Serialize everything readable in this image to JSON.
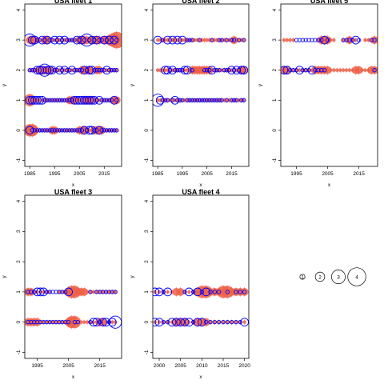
{
  "chart_data": [
    {
      "type": "scatter",
      "title": "USA fleet 1",
      "xlabel": "x",
      "ylabel": "y",
      "xlim": [
        1983,
        2022
      ],
      "ylim": [
        -1.2,
        4.2
      ],
      "xticks": [
        1985,
        1995,
        2005,
        2015
      ],
      "yticks": [
        -1,
        0,
        1,
        2,
        3,
        4
      ],
      "x_start": 1985,
      "x_end": 2020,
      "rows": [
        {
          "y": 3,
          "red_sizes": [
            2,
            2,
            2,
            1,
            1,
            1,
            2,
            2,
            1,
            1,
            1,
            1,
            1,
            1,
            1,
            1,
            1,
            1,
            1,
            1,
            2,
            2,
            2,
            2,
            1,
            2,
            2,
            2,
            2,
            1,
            2,
            2,
            2,
            3,
            3,
            4
          ],
          "blue_sizes": [
            3,
            2,
            2,
            1,
            1,
            2,
            1,
            2,
            1,
            1,
            2,
            1,
            2,
            1,
            2,
            1,
            1,
            1,
            1,
            2,
            1,
            2,
            1,
            3,
            1,
            2,
            1,
            2,
            1,
            1,
            2,
            1,
            2,
            1,
            2,
            1
          ]
        },
        {
          "y": 2,
          "red_sizes": [
            1,
            1,
            1,
            1,
            2,
            2,
            2,
            2,
            2,
            1,
            1,
            1,
            1,
            1,
            1,
            1,
            1,
            1,
            1,
            1,
            1,
            2,
            2,
            2,
            2,
            1,
            1,
            2,
            2,
            1,
            1,
            1,
            1,
            1,
            1,
            1
          ],
          "blue_sizes": [
            1,
            1,
            1,
            2,
            2,
            2,
            3,
            2,
            2,
            2,
            1,
            1,
            2,
            1,
            2,
            1,
            1,
            2,
            1,
            1,
            1,
            1,
            2,
            1,
            2,
            2,
            1,
            1,
            1,
            1,
            1,
            2,
            1,
            1,
            1,
            1
          ]
        },
        {
          "y": 1,
          "red_sizes": [
            3,
            2,
            1,
            1,
            1,
            1,
            1,
            1,
            1,
            1,
            1,
            1,
            1,
            1,
            1,
            1,
            2,
            2,
            2,
            1,
            1,
            1,
            2,
            2,
            2,
            2,
            1,
            1,
            1,
            1,
            1,
            1,
            1,
            1,
            2,
            2
          ],
          "blue_sizes": [
            2,
            2,
            2,
            2,
            2,
            2,
            1,
            1,
            1,
            1,
            1,
            1,
            1,
            1,
            1,
            1,
            1,
            1,
            2,
            2,
            2,
            2,
            2,
            2,
            2,
            2,
            2,
            1,
            2,
            1,
            1,
            1,
            1,
            1,
            2,
            1
          ]
        },
        {
          "y": 0,
          "red_sizes": [
            3,
            3,
            2,
            1,
            1,
            1,
            1,
            1,
            1,
            2,
            2,
            1,
            1,
            1,
            1,
            1,
            1,
            1,
            1,
            1,
            2,
            2,
            2,
            1,
            1,
            1,
            2,
            2,
            2,
            2,
            1,
            1,
            1,
            1,
            1,
            1
          ],
          "blue_sizes": [
            2,
            1,
            1,
            1,
            1,
            1,
            1,
            1,
            1,
            1,
            1,
            1,
            1,
            1,
            1,
            1,
            1,
            1,
            1,
            1,
            1,
            1,
            2,
            1,
            2,
            2,
            1,
            1,
            2,
            1,
            1,
            1,
            1,
            1,
            1,
            1
          ]
        }
      ]
    },
    {
      "type": "scatter",
      "title": "USA fleet 2",
      "xlabel": "x",
      "ylabel": "y",
      "xlim": [
        1983,
        2022
      ],
      "ylim": [
        -1.2,
        4.2
      ],
      "xticks": [
        1985,
        1995,
        2005,
        2015
      ],
      "yticks": [
        -1,
        0,
        1,
        2,
        3,
        4
      ],
      "x_start": 1985,
      "x_end": 2020,
      "rows": [
        {
          "y": 3,
          "red_sizes": [
            1,
            1,
            1,
            1,
            1,
            1,
            1,
            1,
            1,
            1,
            1,
            1,
            1,
            1,
            1,
            1,
            1,
            1,
            1,
            1,
            1,
            1,
            1,
            1,
            1,
            1,
            1,
            1,
            1,
            1,
            1,
            2,
            1,
            1,
            1,
            1
          ],
          "blue_sizes": [
            2,
            0,
            1,
            0,
            2,
            0,
            2,
            0,
            2,
            0,
            2,
            0,
            1,
            1,
            1,
            0,
            0,
            1,
            0,
            0,
            0,
            0,
            1,
            0,
            0,
            1,
            1,
            0,
            1,
            0,
            1,
            1,
            0,
            1,
            0,
            1
          ]
        },
        {
          "y": 2,
          "red_sizes": [
            1,
            1,
            1,
            1,
            1,
            1,
            1,
            1,
            1,
            1,
            1,
            1,
            1,
            1,
            2,
            2,
            2,
            2,
            2,
            2,
            2,
            2,
            1,
            1,
            1,
            1,
            1,
            1,
            1,
            1,
            1,
            1,
            1,
            1,
            2,
            2
          ],
          "blue_sizes": [
            0,
            0,
            0,
            2,
            2,
            1,
            2,
            1,
            1,
            1,
            1,
            2,
            2,
            0,
            1,
            0,
            0,
            0,
            0,
            1,
            1,
            1,
            2,
            1,
            1,
            1,
            0,
            1,
            1,
            1,
            2,
            1,
            2,
            1,
            2,
            2
          ]
        },
        {
          "y": 1,
          "red_sizes": [
            1,
            1,
            1,
            1,
            1,
            1,
            1,
            1,
            1,
            1,
            1,
            1,
            1,
            1,
            1,
            1,
            1,
            1,
            1,
            1,
            1,
            1,
            1,
            1,
            1,
            1,
            1,
            1,
            1,
            1,
            1,
            1,
            1,
            1,
            1,
            1
          ],
          "blue_sizes": [
            3,
            2,
            1,
            1,
            1,
            0,
            1,
            2,
            1,
            1,
            1,
            0,
            1,
            1,
            1,
            1,
            1,
            1,
            1,
            1,
            1,
            1,
            1,
            1,
            1,
            1,
            1,
            0,
            1,
            0,
            1,
            1,
            1,
            0,
            1,
            1
          ]
        },
        {
          "y": 0,
          "red_sizes": [],
          "blue_sizes": []
        }
      ]
    },
    {
      "type": "scatter",
      "title": "USA fleet 5",
      "xlabel": "x",
      "ylabel": "y",
      "xlim": [
        1990,
        2021
      ],
      "ylim": [
        -1.2,
        4.2
      ],
      "xticks": [
        1995,
        2005,
        2015
      ],
      "yticks": [
        -1,
        0,
        1,
        2,
        3,
        4
      ],
      "x_start": 1991,
      "x_end": 2020,
      "rows": [
        {
          "y": 3,
          "red_sizes": [
            1,
            1,
            1,
            1,
            0,
            0,
            0,
            0,
            0,
            0,
            0,
            1,
            2,
            2,
            2,
            1,
            1,
            0,
            0,
            1,
            1,
            2,
            1,
            1,
            0,
            0,
            1,
            1,
            1,
            2
          ],
          "blue_sizes": [
            0,
            0,
            0,
            0,
            1,
            1,
            1,
            1,
            1,
            1,
            1,
            1,
            1,
            2,
            1,
            0,
            0,
            0,
            0,
            1,
            1,
            1,
            1,
            2,
            1,
            0,
            0,
            0,
            1,
            1
          ]
        },
        {
          "y": 2,
          "red_sizes": [
            2,
            2,
            1,
            1,
            1,
            1,
            1,
            1,
            1,
            1,
            2,
            2,
            2,
            2,
            2,
            1,
            1,
            1,
            1,
            1,
            1,
            1,
            1,
            2,
            2,
            1,
            1,
            1,
            2,
            2
          ],
          "blue_sizes": [
            2,
            2,
            1,
            1,
            1,
            2,
            1,
            1,
            1,
            2,
            1,
            1,
            1,
            1,
            0,
            0,
            0,
            0,
            0,
            0,
            0,
            0,
            0,
            0,
            0,
            0,
            0,
            0,
            0,
            1
          ]
        },
        {
          "y": 1,
          "red_sizes": [],
          "blue_sizes": []
        },
        {
          "y": 0,
          "red_sizes": [],
          "blue_sizes": []
        }
      ]
    },
    {
      "type": "scatter",
      "title": "USA fleet 3",
      "xlabel": "x",
      "ylabel": "y",
      "xlim": [
        1991,
        2022
      ],
      "ylim": [
        -1.2,
        4.2
      ],
      "xticks": [
        1995,
        2005,
        2015
      ],
      "yticks": [
        -1,
        0,
        1,
        2,
        3,
        4
      ],
      "x_start": 1992,
      "x_end": 2020,
      "rows": [
        {
          "y": 1,
          "red_sizes": [
            2,
            2,
            1,
            1,
            1,
            1,
            1,
            1,
            0,
            0,
            1,
            1,
            1,
            2,
            3,
            3,
            2,
            2,
            2,
            1,
            1,
            1,
            1,
            1,
            1,
            1,
            1,
            1,
            1
          ],
          "blue_sizes": [
            1,
            1,
            1,
            2,
            2,
            2,
            1,
            1,
            1,
            1,
            1,
            1,
            1,
            2,
            0,
            0,
            0,
            0,
            0,
            0,
            1,
            0,
            1,
            1,
            1,
            1,
            1,
            1,
            1
          ]
        },
        {
          "y": 0,
          "red_sizes": [
            2,
            2,
            2,
            2,
            1,
            1,
            1,
            1,
            1,
            1,
            1,
            1,
            1,
            2,
            3,
            3,
            1,
            1,
            1,
            1,
            1,
            1,
            1,
            2,
            2,
            1,
            1,
            1,
            1
          ],
          "blue_sizes": [
            1,
            1,
            1,
            1,
            1,
            1,
            1,
            1,
            1,
            1,
            1,
            1,
            1,
            1,
            0,
            1,
            1,
            0,
            0,
            0,
            1,
            2,
            2,
            1,
            2,
            2,
            1,
            2,
            3
          ]
        }
      ]
    },
    {
      "type": "scatter",
      "title": "USA fleet 4",
      "xlabel": "x",
      "ylabel": "y",
      "xlim": [
        1998.5,
        2021
      ],
      "ylim": [
        -1.2,
        4.2
      ],
      "xticks": [
        2000,
        2005,
        2010,
        2015,
        2020
      ],
      "yticks": [
        -1,
        0,
        1,
        2,
        3,
        4
      ],
      "x_start": 1999,
      "x_end": 2020,
      "rows": [
        {
          "y": 1,
          "red_sizes": [
            1,
            1,
            1,
            1,
            1,
            2,
            2,
            1,
            1,
            1,
            2,
            3,
            3,
            2,
            2,
            2,
            3,
            3,
            2,
            2,
            2,
            2
          ],
          "blue_sizes": [
            2,
            2,
            1,
            2,
            0,
            0,
            0,
            1,
            2,
            1,
            2,
            1,
            2,
            1,
            1,
            1,
            0,
            1,
            0,
            1,
            1,
            1
          ]
        },
        {
          "y": 0,
          "red_sizes": [
            1,
            1,
            1,
            1,
            1,
            2,
            2,
            2,
            1,
            1,
            2,
            2,
            2,
            1,
            1,
            1,
            1,
            1,
            1,
            1,
            1,
            1
          ],
          "blue_sizes": [
            2,
            2,
            1,
            1,
            2,
            2,
            2,
            2,
            2,
            1,
            2,
            2,
            1,
            1,
            1,
            1,
            1,
            1,
            1,
            1,
            1,
            2
          ]
        }
      ]
    }
  ],
  "legend": {
    "sizes": [
      1,
      2,
      3,
      4
    ],
    "labels": [
      "1",
      "2",
      "3",
      "4"
    ]
  },
  "colors": {
    "red": "#ef6048",
    "blue": "#0000ff",
    "axis": "#000000"
  }
}
